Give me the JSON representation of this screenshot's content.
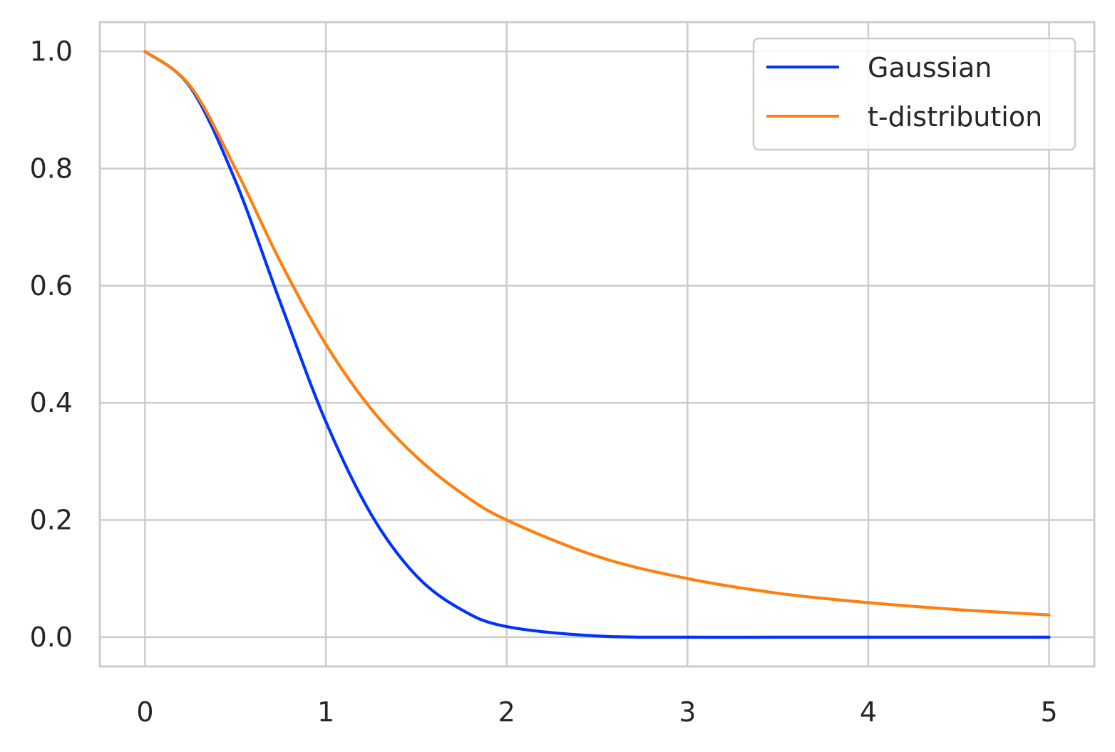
{
  "chart_data": {
    "type": "line",
    "title": "",
    "xlabel": "",
    "ylabel": "",
    "xlim": [
      -0.25,
      5.25
    ],
    "ylim": [
      -0.05,
      1.05
    ],
    "grid": true,
    "legend_position": "top-right",
    "x_ticks": [
      0,
      1,
      2,
      3,
      4,
      5
    ],
    "x_tick_labels": [
      "0",
      "1",
      "2",
      "3",
      "4",
      "5"
    ],
    "y_ticks": [
      0.0,
      0.2,
      0.4,
      0.6,
      0.8,
      1.0
    ],
    "y_tick_labels": [
      "0.0",
      "0.2",
      "0.4",
      "0.6",
      "0.8",
      "1.0"
    ],
    "x": [
      0,
      0.25,
      0.5,
      0.75,
      1.0,
      1.25,
      1.5,
      1.75,
      2.0,
      2.5,
      3.0,
      3.5,
      4.0,
      4.5,
      5.0
    ],
    "series": [
      {
        "name": "Gaussian",
        "color": "#0033ff",
        "values": [
          1.0,
          0.939,
          0.779,
          0.57,
          0.368,
          0.21,
          0.105,
          0.047,
          0.018,
          0.002,
          0.0,
          0.0,
          0.0,
          0.0,
          0.0
        ]
      },
      {
        "name": "t-distribution",
        "color": "#ff7f0e",
        "values": [
          1.0,
          0.941,
          0.8,
          0.64,
          0.5,
          0.39,
          0.308,
          0.246,
          0.2,
          0.138,
          0.1,
          0.075,
          0.059,
          0.047,
          0.038
        ]
      }
    ],
    "colors": {
      "grid": "#cccccc",
      "frame": "#cccccc",
      "text": "#262626",
      "background": "#ffffff"
    }
  }
}
